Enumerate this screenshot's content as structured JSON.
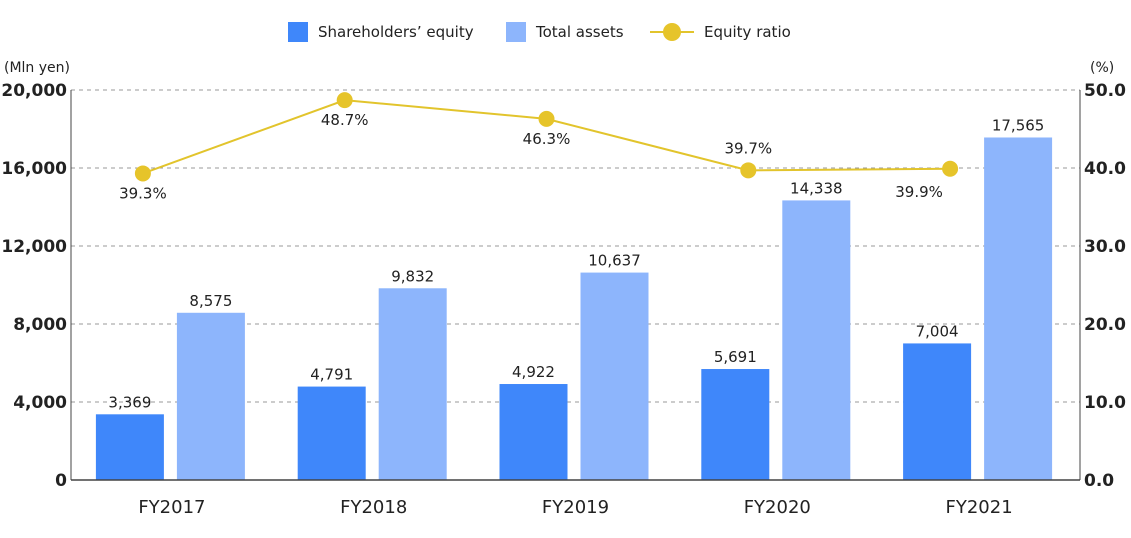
{
  "colors": {
    "equity": "#3f87fa",
    "assets": "#8db5fc",
    "ratio_line": "#e2c42c",
    "ratio_dot": "#e6c42a",
    "grid": "#9a9a9a",
    "axis": "#444444",
    "text": "#222222"
  },
  "legend": {
    "equity": "Shareholders’ equity",
    "assets": "Total assets",
    "ratio": "Equity ratio"
  },
  "units": {
    "left": "(Mln yen)",
    "right": "(%)"
  },
  "chart_data": {
    "type": "bar",
    "categories": [
      "FY2017",
      "FY2018",
      "FY2019",
      "FY2020",
      "FY2021"
    ],
    "series": [
      {
        "name": "Shareholders’ equity",
        "type": "bar",
        "axis": "left",
        "values": [
          3369,
          4791,
          4922,
          5691,
          7004
        ],
        "labels": [
          "3,369",
          "4,791",
          "4,922",
          "5,691",
          "7,004"
        ]
      },
      {
        "name": "Total assets",
        "type": "bar",
        "axis": "left",
        "values": [
          8575,
          9832,
          10637,
          14338,
          17565
        ],
        "labels": [
          "8,575",
          "9,832",
          "10,637",
          "14,338",
          "17,565"
        ]
      },
      {
        "name": "Equity ratio",
        "type": "line",
        "axis": "right",
        "values": [
          39.3,
          48.7,
          46.3,
          39.7,
          39.9
        ],
        "labels": [
          "39.3%",
          "48.7%",
          "46.3%",
          "39.7%",
          "39.9%"
        ],
        "label_position": [
          "below",
          "below",
          "below",
          "above",
          "left"
        ]
      }
    ],
    "y_left": {
      "min": 0,
      "max": 20000,
      "ticks": [
        0,
        4000,
        8000,
        12000,
        16000,
        20000
      ],
      "tick_labels": [
        "0",
        "4,000",
        "8,000",
        "12,000",
        "16,000",
        "20,000"
      ]
    },
    "y_right": {
      "min": 0,
      "max": 50,
      "ticks": [
        0,
        10,
        20,
        30,
        40,
        50
      ],
      "tick_labels": [
        "0.0",
        "10.0",
        "20.0",
        "30.0",
        "40.0",
        "50.0"
      ]
    },
    "grid": true,
    "legend_position": "top-center"
  }
}
